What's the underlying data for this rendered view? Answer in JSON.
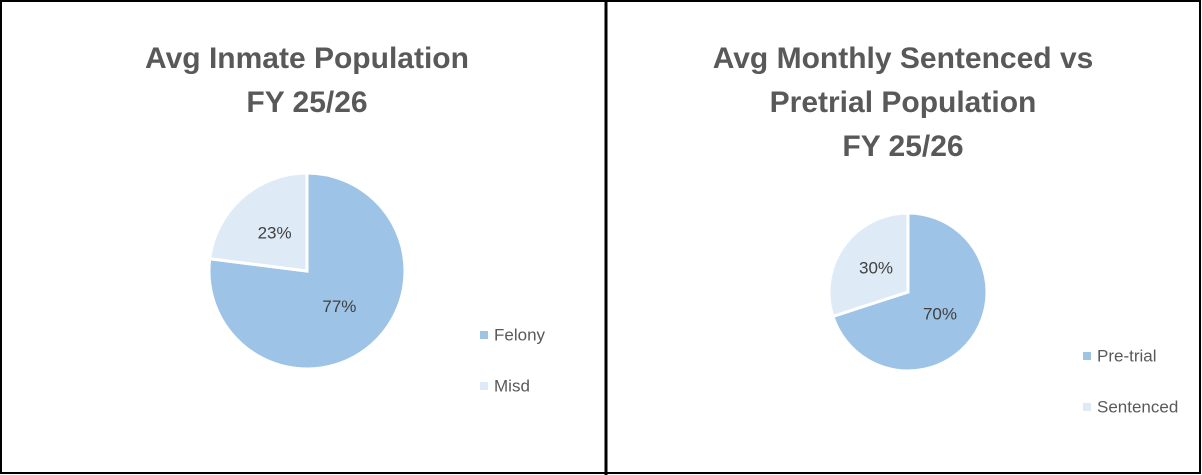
{
  "chart_data": [
    {
      "type": "pie",
      "title": [
        "Avg Inmate Population",
        "FY 25/26"
      ],
      "categories": [
        "Felony",
        "Misd"
      ],
      "values": [
        77,
        23
      ],
      "value_labels": [
        "77%",
        "23%"
      ],
      "colors": [
        "#9dc3e6",
        "#deebf7"
      ],
      "legend": "right"
    },
    {
      "type": "pie",
      "title": [
        "Avg Monthly Sentenced vs",
        "Pretrial Population",
        "FY 25/26"
      ],
      "categories": [
        "Pre-trial",
        "Sentenced"
      ],
      "values": [
        70,
        30
      ],
      "value_labels": [
        "70%",
        "30%"
      ],
      "colors": [
        "#9dc3e6",
        "#deebf7"
      ],
      "legend": "right"
    }
  ]
}
